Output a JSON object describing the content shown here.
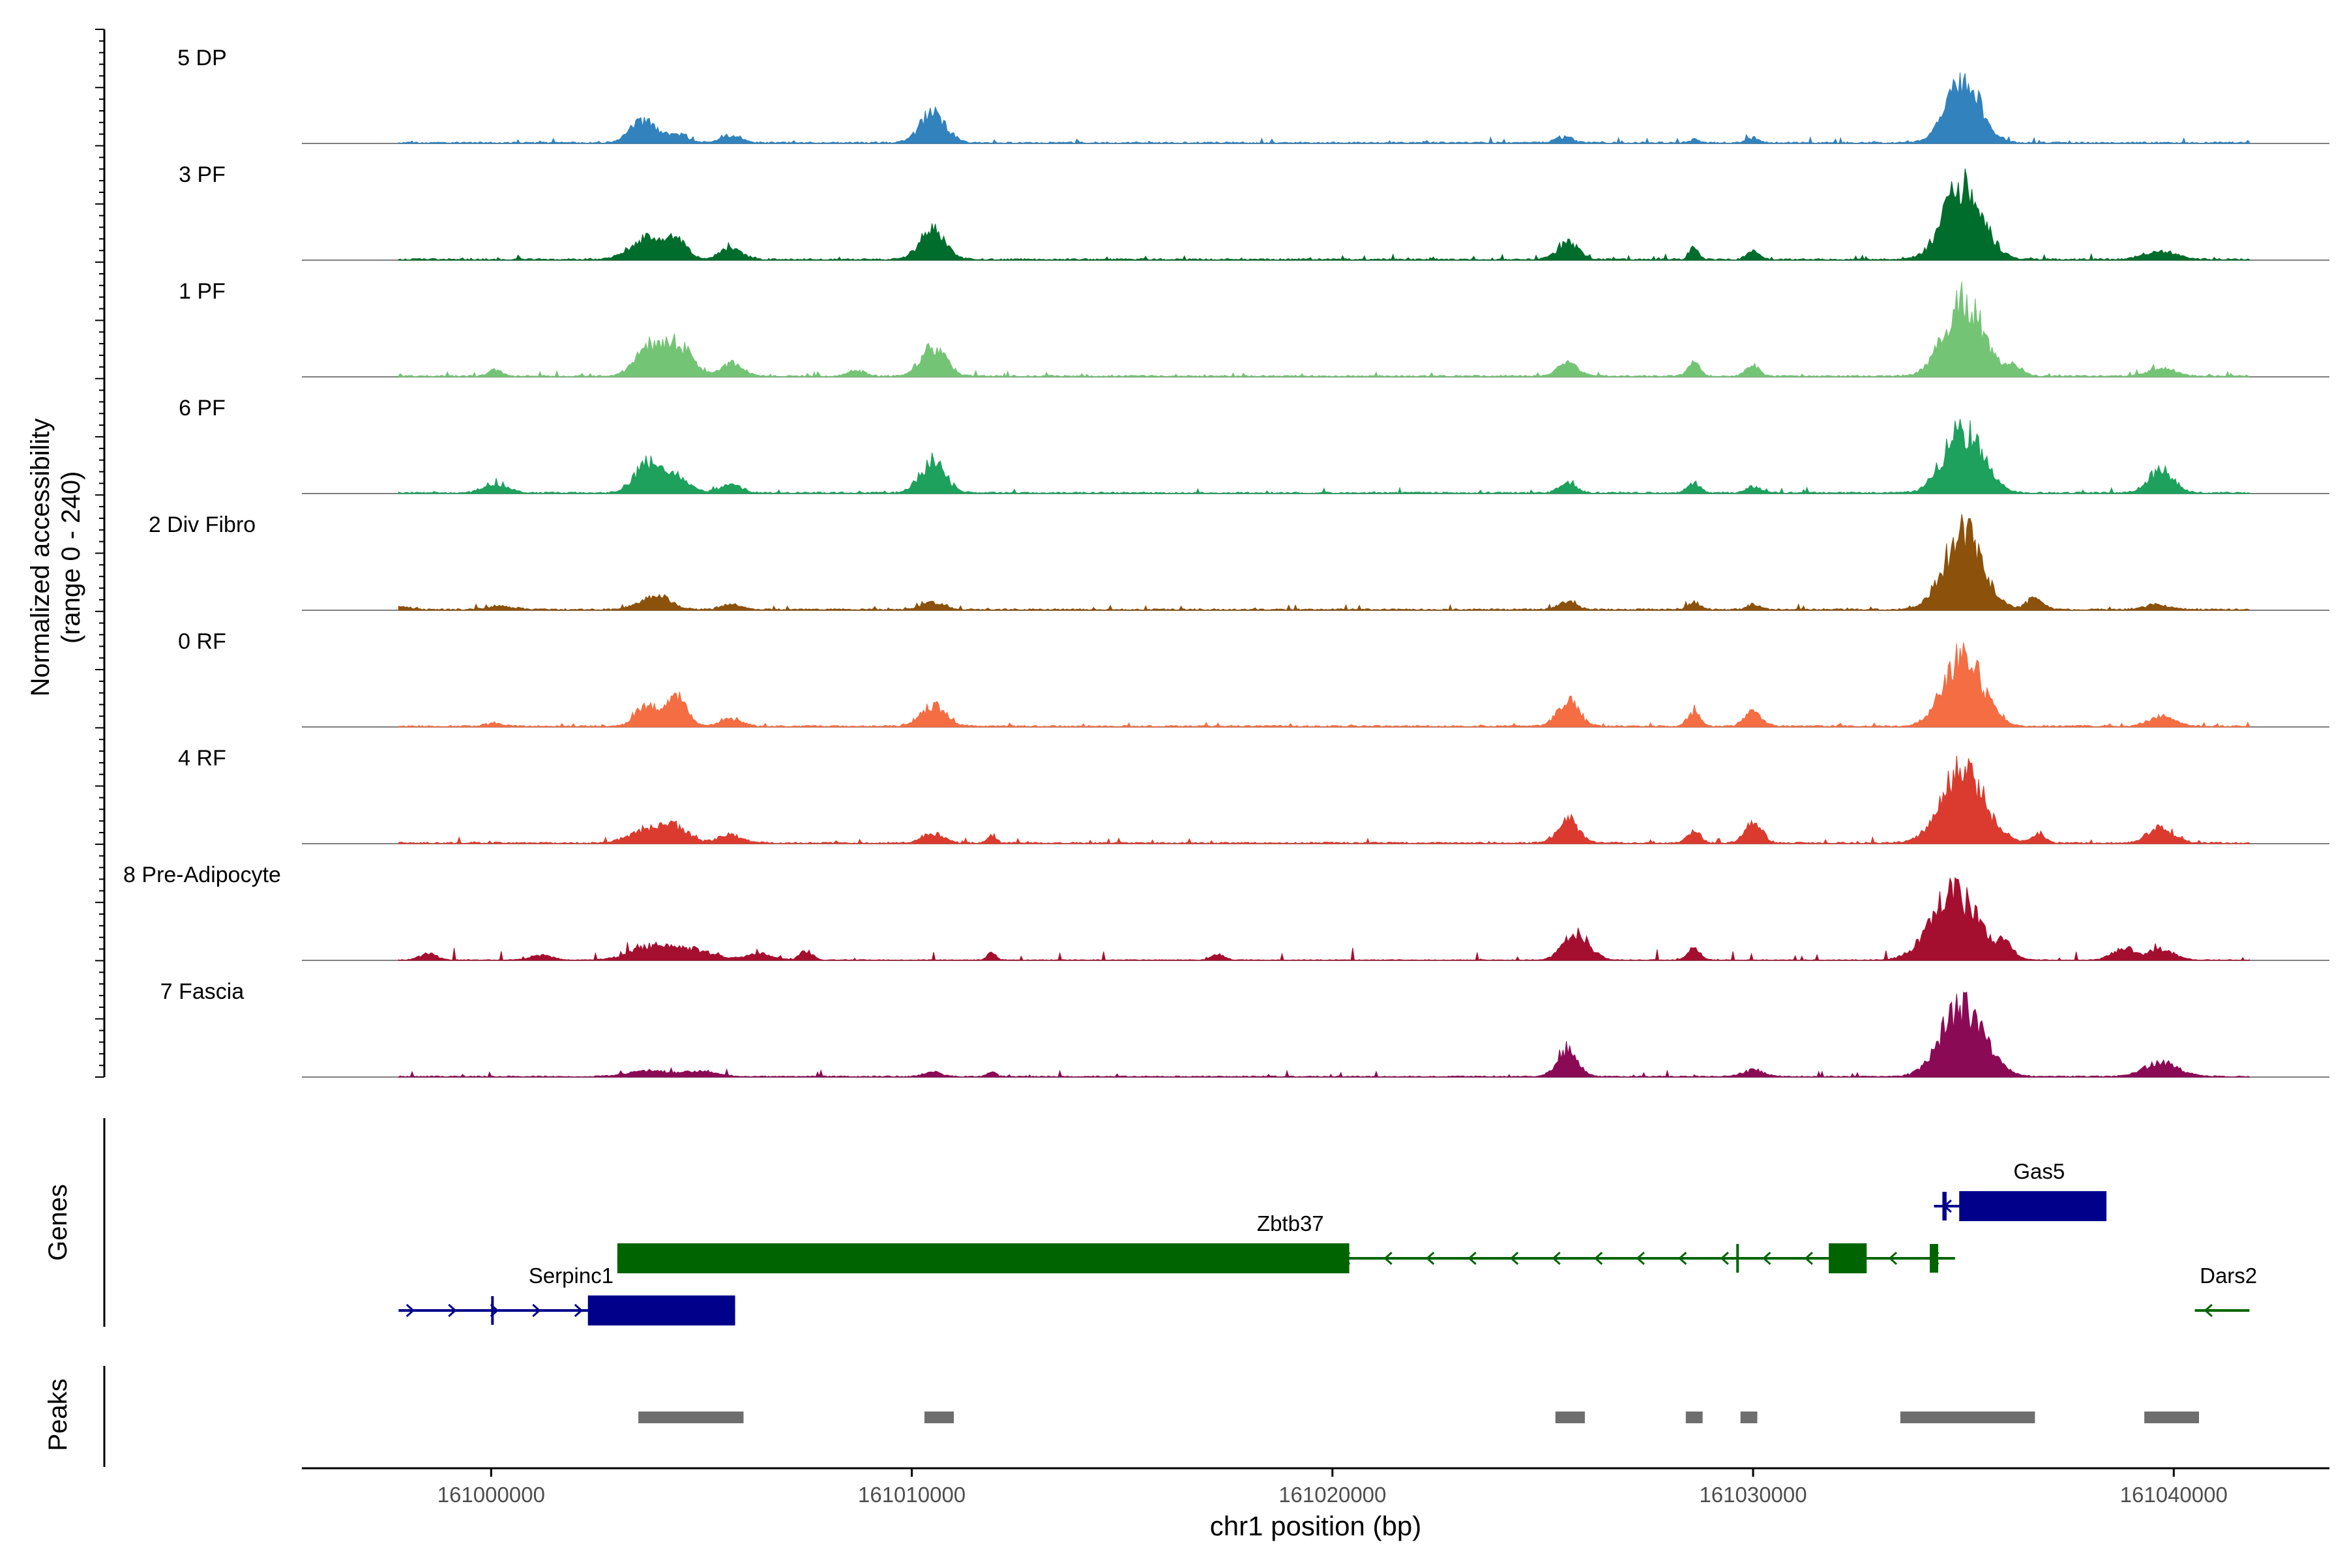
{
  "chart_data": {
    "type": "area",
    "title": "",
    "ylabel_line1": "Normalized accessibility",
    "ylabel_line2": "(range 0 - 240)",
    "ylim": [
      0,
      240
    ],
    "xlabel": "chr1 position (bp)",
    "xlim": [
      160995500,
      161043700
    ],
    "x_ticks": [
      161000000,
      161010000,
      161020000,
      161030000,
      161040000
    ],
    "x_tick_labels": [
      "161000000",
      "161010000",
      "161020000",
      "161030000",
      "161040000"
    ],
    "data_range": [
      160997800,
      161041800
    ],
    "tracks": [
      {
        "name": "5 DP",
        "color": "#3182BD",
        "baseline": 4,
        "jitter": 4,
        "peaks": [
          [
            161003600,
            300,
            70
          ],
          [
            161004400,
            250,
            28
          ],
          [
            161005700,
            250,
            22
          ],
          [
            161010500,
            300,
            95
          ],
          [
            161025500,
            200,
            18
          ],
          [
            161028600,
            100,
            12
          ],
          [
            161030000,
            150,
            15
          ],
          [
            161035000,
            400,
            200
          ]
        ]
      },
      {
        "name": "3 PF",
        "color": "#006D2C",
        "baseline": 4,
        "jitter": 4,
        "peaks": [
          [
            161003700,
            400,
            65
          ],
          [
            161004400,
            250,
            55
          ],
          [
            161005700,
            250,
            40
          ],
          [
            161010500,
            300,
            90
          ],
          [
            161025600,
            250,
            55
          ],
          [
            161028600,
            100,
            40
          ],
          [
            161030000,
            150,
            25
          ],
          [
            161035000,
            450,
            235
          ],
          [
            161039700,
            400,
            25
          ]
        ]
      },
      {
        "name": "1 PF",
        "color": "#74C476",
        "baseline": 4,
        "jitter": 4,
        "peaks": [
          [
            161003700,
            300,
            85
          ],
          [
            161004400,
            350,
            100
          ],
          [
            161005700,
            250,
            40
          ],
          [
            161000100,
            150,
            20
          ],
          [
            161008700,
            200,
            18
          ],
          [
            161010500,
            300,
            90
          ],
          [
            161025600,
            250,
            40
          ],
          [
            161028600,
            150,
            40
          ],
          [
            161030000,
            150,
            35
          ],
          [
            161035000,
            450,
            240
          ],
          [
            161036200,
            200,
            30
          ],
          [
            161039700,
            300,
            25
          ]
        ]
      },
      {
        "name": "6 PF",
        "color": "#1DA15C",
        "baseline": 4,
        "jitter": 4,
        "peaks": [
          [
            161000100,
            300,
            25
          ],
          [
            161003700,
            300,
            90
          ],
          [
            161004400,
            300,
            50
          ],
          [
            161005700,
            250,
            28
          ],
          [
            161010500,
            300,
            95
          ],
          [
            161025600,
            200,
            30
          ],
          [
            161028600,
            150,
            30
          ],
          [
            161030000,
            150,
            20
          ],
          [
            161035000,
            450,
            200
          ],
          [
            161039700,
            300,
            70
          ]
        ]
      },
      {
        "name": "2 Div Fibro",
        "color": "#8C510A",
        "baseline": 4,
        "jitter": 4,
        "peaks": [
          [
            160997800,
            250,
            10
          ],
          [
            161000200,
            300,
            12
          ],
          [
            161003900,
            350,
            45
          ],
          [
            161005700,
            250,
            15
          ],
          [
            161010500,
            250,
            22
          ],
          [
            161025600,
            200,
            25
          ],
          [
            161028600,
            150,
            22
          ],
          [
            161030000,
            150,
            15
          ],
          [
            161035000,
            450,
            240
          ],
          [
            161036700,
            200,
            35
          ],
          [
            161039600,
            300,
            15
          ]
        ]
      },
      {
        "name": "0 RF",
        "color": "#F46D43",
        "baseline": 4,
        "jitter": 4,
        "peaks": [
          [
            161000100,
            200,
            10
          ],
          [
            161003700,
            250,
            65
          ],
          [
            161004400,
            250,
            90
          ],
          [
            161005700,
            250,
            25
          ],
          [
            161010500,
            300,
            65
          ],
          [
            161025600,
            250,
            80
          ],
          [
            161028600,
            150,
            45
          ],
          [
            161030000,
            200,
            45
          ],
          [
            161035000,
            450,
            220
          ],
          [
            161039700,
            300,
            30
          ]
        ]
      },
      {
        "name": "4 RF",
        "color": "#DA3B2E",
        "baseline": 4,
        "jitter": 4,
        "peaks": [
          [
            161003700,
            400,
            45
          ],
          [
            161004400,
            300,
            45
          ],
          [
            161005700,
            300,
            25
          ],
          [
            161010500,
            250,
            30
          ],
          [
            161011900,
            100,
            25
          ],
          [
            161025600,
            250,
            75
          ],
          [
            161028600,
            150,
            40
          ],
          [
            161030000,
            200,
            65
          ],
          [
            161035000,
            500,
            230
          ],
          [
            161036800,
            150,
            30
          ],
          [
            161039700,
            300,
            50
          ]
        ]
      },
      {
        "name": "8 Pre-Adipocyte",
        "color": "#A50F2F",
        "baseline": 2,
        "jitter": 10,
        "peaks": [
          [
            160998500,
            200,
            20
          ],
          [
            161001200,
            250,
            15
          ],
          [
            161003800,
            500,
            40
          ],
          [
            161004800,
            500,
            30
          ],
          [
            161006400,
            300,
            20
          ],
          [
            161007500,
            150,
            30
          ],
          [
            161011900,
            100,
            22
          ],
          [
            161017300,
            150,
            18
          ],
          [
            161025800,
            300,
            85
          ],
          [
            161028600,
            150,
            35
          ],
          [
            161034800,
            550,
            210
          ],
          [
            161036000,
            200,
            40
          ],
          [
            161038800,
            250,
            40
          ],
          [
            161039700,
            300,
            35
          ]
        ]
      },
      {
        "name": "7 Fascia",
        "color": "#8B0A55",
        "baseline": 3,
        "jitter": 5,
        "peaks": [
          [
            161003800,
            500,
            18
          ],
          [
            161005000,
            400,
            15
          ],
          [
            161010500,
            200,
            15
          ],
          [
            161011900,
            100,
            15
          ],
          [
            161025600,
            250,
            80
          ],
          [
            161030000,
            250,
            20
          ],
          [
            161035000,
            500,
            220
          ],
          [
            161039700,
            400,
            45
          ]
        ]
      }
    ],
    "genes_label": "Genes",
    "genes": [
      {
        "name": "Serpinc1",
        "strand": "+",
        "color": "#00008B",
        "start": 160997800,
        "end": 161005800,
        "exons": [
          [
            161002300,
            161005800
          ],
          [
            161000000,
            161000050
          ]
        ],
        "row": 3
      },
      {
        "name": "Zbtb37",
        "strand": "-",
        "color": "#006400",
        "start": 161003000,
        "end": 161034800,
        "exons": [
          [
            161003000,
            161020400
          ],
          [
            161031800,
            161032700
          ],
          [
            161034200,
            161034400
          ],
          [
            161029600,
            161029650
          ]
        ],
        "row": 2
      },
      {
        "name": "Gas5",
        "strand": "-",
        "color": "#00008B",
        "start": 161034300,
        "end": 161038400,
        "exons": [
          [
            161034900,
            161038400
          ],
          [
            161034500,
            161034600
          ]
        ],
        "row": 1
      },
      {
        "name": "Dars2",
        "strand": "-",
        "color": "#006400",
        "start": 161040500,
        "end": 161041800,
        "exons": [],
        "row": 3
      }
    ],
    "peaks_label": "Peaks",
    "peak_regions": [
      [
        161003500,
        161006000
      ],
      [
        161010300,
        161011000
      ],
      [
        161025300,
        161026000
      ],
      [
        161028400,
        161028800
      ],
      [
        161029700,
        161030100
      ],
      [
        161033500,
        161036700
      ],
      [
        161039300,
        161040600
      ]
    ]
  }
}
